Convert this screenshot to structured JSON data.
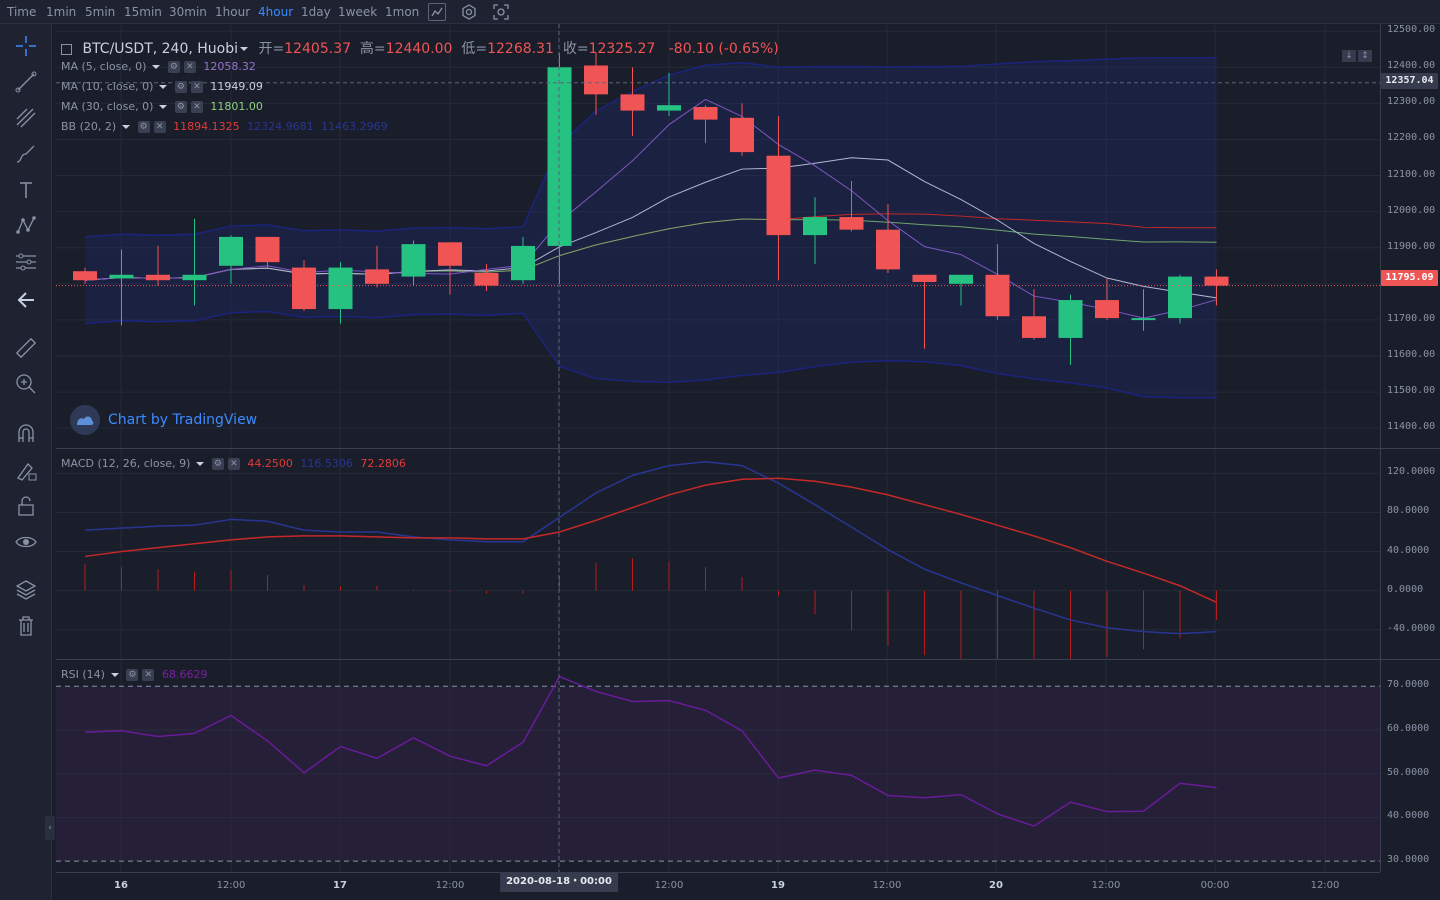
{
  "toolbar": {
    "time_label": "Time",
    "intervals": [
      "1min",
      "5min",
      "15min",
      "30min",
      "1hour",
      "4hour",
      "1day",
      "1week",
      "1mon"
    ],
    "active_interval": "4hour",
    "icons": [
      "indicator-icon",
      "settings-icon",
      "screenshot-icon"
    ]
  },
  "left_tools": [
    "crosshair-icon",
    "trend-line-icon",
    "fib-icon",
    "brush-icon",
    "text-icon",
    "pattern-icon",
    "prediction-icon",
    "back-arrow-icon",
    "ruler-icon",
    "zoom-in-icon",
    "magnet-icon",
    "lock-drawing-icon",
    "unlock-icon",
    "eye-icon",
    "layers-icon",
    "trash-icon"
  ],
  "symbol": {
    "name": "BTC/USDT, 240, Huobi",
    "open_label": "开=",
    "open": "12405.37",
    "high_label": "高=",
    "high": "12440.00",
    "low_label": "低=",
    "low": "12268.31",
    "close_label": "收=",
    "close": "12325.27",
    "change": "-80.10 (-0.65%)"
  },
  "indicators": {
    "ma5": {
      "label": "MA (5, close, 0)",
      "value": "12058.32",
      "color": "#7e57c2"
    },
    "ma10": {
      "label": "MA (10, close, 0)",
      "value": "11949.09",
      "color": "#b3b8d6"
    },
    "ma30": {
      "label": "MA (30, close, 0)",
      "value": "11801.00",
      "color": "#6ea76e"
    },
    "bb": {
      "label": "BB (20, 2)",
      "basis": "11894.1325",
      "upper": "12324.9681",
      "lower": "11463.2969",
      "basis_color": "#c62828",
      "band_color": "#1a237e"
    }
  },
  "macd": {
    "label": "MACD (12, 26, close, 9)",
    "hist": "44.2500",
    "macd": "116.5306",
    "signal": "72.2806"
  },
  "rsi": {
    "label": "RSI (14)",
    "value": "68.6629"
  },
  "price_axis": {
    "ticks": [
      "12500.00",
      "12400.00",
      "12300.00",
      "12200.00",
      "12100.00",
      "12000.00",
      "11900.00",
      "11800.00",
      "11700.00",
      "11600.00",
      "11500.00",
      "11400.00"
    ],
    "crosshair_price": "12357.04",
    "last_price": "11795.09"
  },
  "macd_axis": {
    "ticks": [
      "120.0000",
      "80.0000",
      "40.0000",
      "0.0000",
      "-40.0000"
    ]
  },
  "rsi_axis": {
    "ticks": [
      "70.0000",
      "60.0000",
      "50.0000",
      "40.0000",
      "30.0000"
    ]
  },
  "time_axis": {
    "labels": [
      "16",
      "12:00",
      "17",
      "12:00",
      "12:00",
      "19",
      "12:00",
      "20",
      "12:00",
      "00:00",
      "12:00"
    ],
    "crosshair_date": "2020-08-18・00:00"
  },
  "watermark": "Chart by TradingView",
  "colors": {
    "up": "#26c281",
    "down": "#f05454",
    "bg": "#1a1e2b",
    "accent": "#3d8bff"
  },
  "chart_data": {
    "type": "candlestick",
    "symbol": "BTC/USDT",
    "interval": "240",
    "candles": [
      {
        "o": 11835,
        "h": 11845,
        "l": 11800,
        "c": 11810
      },
      {
        "o": 11815,
        "h": 11895,
        "l": 11685,
        "c": 11825
      },
      {
        "o": 11825,
        "h": 11905,
        "l": 11795,
        "c": 11810
      },
      {
        "o": 11810,
        "h": 11980,
        "l": 11740,
        "c": 11825
      },
      {
        "o": 11850,
        "h": 11935,
        "l": 11800,
        "c": 11930
      },
      {
        "o": 11930,
        "h": 11930,
        "l": 11840,
        "c": 11860
      },
      {
        "o": 11845,
        "h": 11865,
        "l": 11725,
        "c": 11730
      },
      {
        "o": 11730,
        "h": 11860,
        "l": 11690,
        "c": 11845
      },
      {
        "o": 11840,
        "h": 11905,
        "l": 11790,
        "c": 11800
      },
      {
        "o": 11820,
        "h": 11920,
        "l": 11795,
        "c": 11910
      },
      {
        "o": 11915,
        "h": 11915,
        "l": 11770,
        "c": 11850
      },
      {
        "o": 11830,
        "h": 11855,
        "l": 11780,
        "c": 11795
      },
      {
        "o": 11810,
        "h": 11930,
        "l": 11800,
        "c": 11905
      },
      {
        "o": 11905,
        "h": 12440,
        "l": 11800,
        "c": 12400
      },
      {
        "o": 12405,
        "h": 12440,
        "l": 12268,
        "c": 12325
      },
      {
        "o": 12325,
        "h": 12400,
        "l": 12210,
        "c": 12280
      },
      {
        "o": 12280,
        "h": 12385,
        "l": 12265,
        "c": 12295
      },
      {
        "o": 12290,
        "h": 12295,
        "l": 12190,
        "c": 12255
      },
      {
        "o": 12260,
        "h": 12300,
        "l": 12155,
        "c": 12165
      },
      {
        "o": 12155,
        "h": 12265,
        "l": 11810,
        "c": 11935
      },
      {
        "o": 11935,
        "h": 12040,
        "l": 11855,
        "c": 11985
      },
      {
        "o": 11985,
        "h": 12085,
        "l": 11945,
        "c": 11950
      },
      {
        "o": 11950,
        "h": 12020,
        "l": 11830,
        "c": 11840
      },
      {
        "o": 11825,
        "h": 11825,
        "l": 11620,
        "c": 11805
      },
      {
        "o": 11800,
        "h": 11825,
        "l": 11740,
        "c": 11825
      },
      {
        "o": 11825,
        "h": 11910,
        "l": 11700,
        "c": 11710
      },
      {
        "o": 11710,
        "h": 11785,
        "l": 11645,
        "c": 11650
      },
      {
        "o": 11650,
        "h": 11770,
        "l": 11575,
        "c": 11755
      },
      {
        "o": 11755,
        "h": 11815,
        "l": 11700,
        "c": 11705
      },
      {
        "o": 11700,
        "h": 11785,
        "l": 11670,
        "c": 11705
      },
      {
        "o": 11705,
        "h": 11825,
        "l": 11690,
        "c": 11820
      },
      {
        "o": 11820,
        "h": 11840,
        "l": 11740,
        "c": 11795
      }
    ],
    "ylim": [
      11345,
      12520
    ]
  }
}
